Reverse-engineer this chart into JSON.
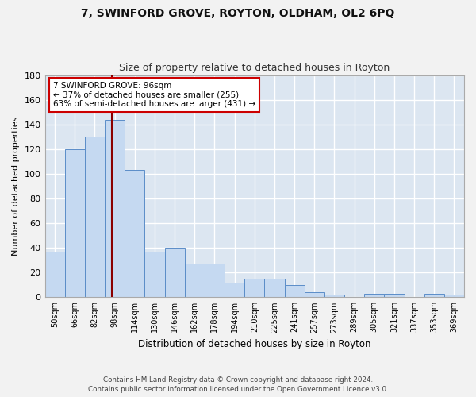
{
  "title_main": "7, SWINFORD GROVE, ROYTON, OLDHAM, OL2 6PQ",
  "title_sub": "Size of property relative to detached houses in Royton",
  "xlabel": "Distribution of detached houses by size in Royton",
  "ylabel": "Number of detached properties",
  "categories": [
    "50sqm",
    "66sqm",
    "82sqm",
    "98sqm",
    "114sqm",
    "130sqm",
    "146sqm",
    "162sqm",
    "178sqm",
    "194sqm",
    "210sqm",
    "225sqm",
    "241sqm",
    "257sqm",
    "273sqm",
    "289sqm",
    "305sqm",
    "321sqm",
    "337sqm",
    "353sqm",
    "369sqm"
  ],
  "values": [
    37,
    120,
    130,
    144,
    103,
    37,
    40,
    27,
    27,
    12,
    15,
    15,
    10,
    4,
    2,
    0,
    3,
    3,
    0,
    3,
    2
  ],
  "bar_color": "#c5d9f1",
  "bar_edge_color": "#5b8dc8",
  "background_color": "#dce6f1",
  "grid_color": "#ffffff",
  "vline_color": "#8b0000",
  "annotation_text": "7 SWINFORD GROVE: 96sqm\n← 37% of detached houses are smaller (255)\n63% of semi-detached houses are larger (431) →",
  "annotation_box_color": "#ffffff",
  "annotation_box_edge": "#cc0000",
  "ylim": [
    0,
    180
  ],
  "yticks": [
    0,
    20,
    40,
    60,
    80,
    100,
    120,
    140,
    160,
    180
  ],
  "footer": "Contains HM Land Registry data © Crown copyright and database right 2024.\nContains public sector information licensed under the Open Government Licence v3.0."
}
